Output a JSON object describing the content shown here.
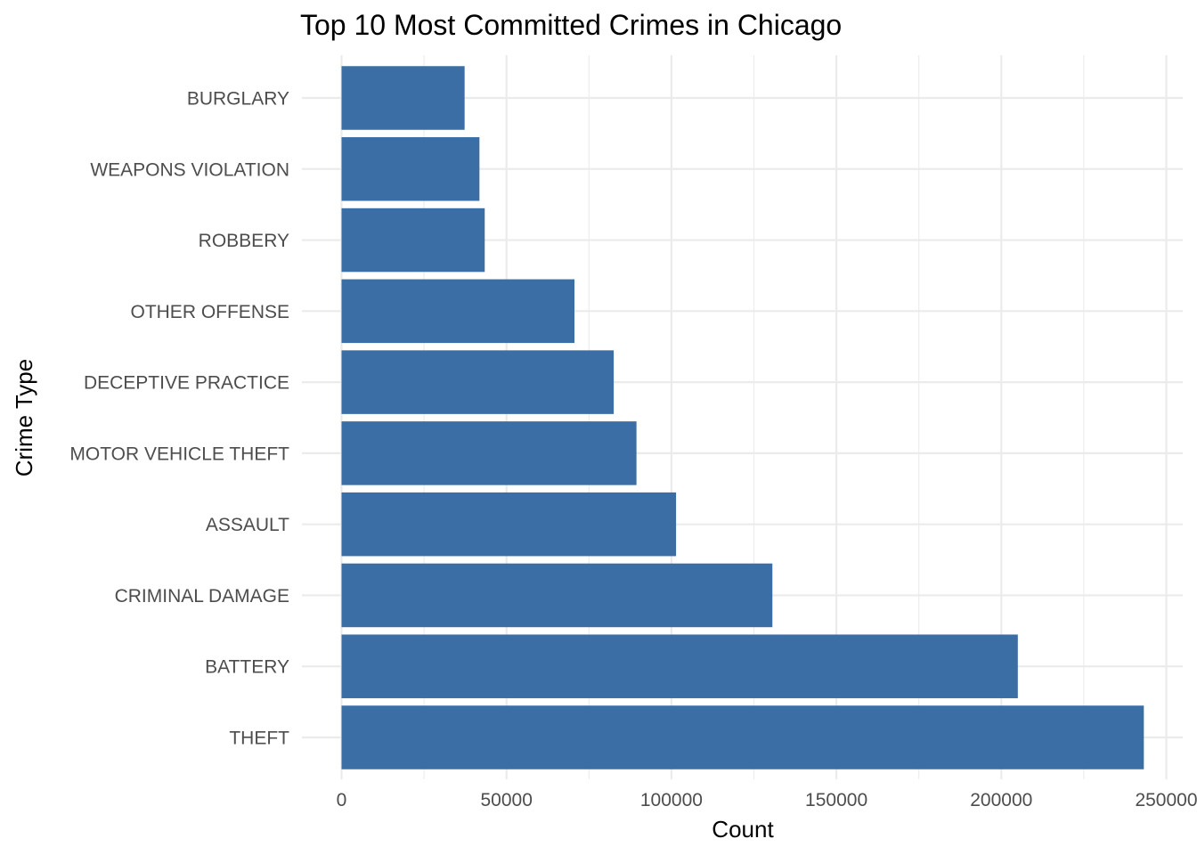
{
  "chart_data": {
    "type": "bar",
    "orientation": "horizontal",
    "title": "Top 10 Most Committed Crimes in Chicago",
    "xlabel": "Count",
    "ylabel": "Crime Type",
    "categories": [
      "BURGLARY",
      "WEAPONS VIOLATION",
      "ROBBERY",
      "OTHER OFFENSE",
      "DECEPTIVE PRACTICE",
      "MOTOR VEHICLE THEFT",
      "ASSAULT",
      "CRIMINAL DAMAGE",
      "BATTERY",
      "THEFT"
    ],
    "values": [
      37300,
      41800,
      43400,
      70600,
      82500,
      89400,
      101400,
      130600,
      205000,
      243200
    ],
    "x_ticks": [
      0,
      50000,
      100000,
      150000,
      200000,
      250000
    ],
    "x_tick_labels": [
      "0",
      "50000",
      "100000",
      "150000",
      "200000",
      "250000"
    ],
    "xlim": [
      0,
      250000
    ],
    "grid": true,
    "legend": "none",
    "bar_color": "#3a6ea5"
  }
}
